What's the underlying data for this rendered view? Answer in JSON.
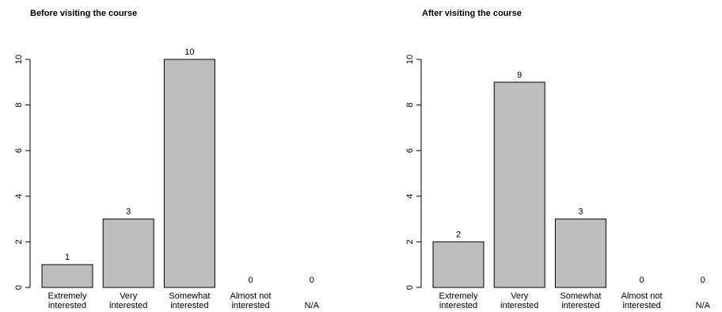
{
  "chart_data": [
    {
      "type": "bar",
      "title": "Before visiting the course",
      "categories": [
        [
          "Extremely",
          "interested"
        ],
        [
          "Very",
          "interested"
        ],
        [
          "Somewhat",
          "interested"
        ],
        [
          "Almost not",
          "interested"
        ],
        [
          "N/A"
        ]
      ],
      "values": [
        1,
        3,
        10,
        0,
        0
      ],
      "ylim": [
        0,
        10
      ],
      "yticks": [
        0,
        2,
        4,
        6,
        8,
        10
      ],
      "bar_color": "#bebebe",
      "data_labels": true,
      "grid": false
    },
    {
      "type": "bar",
      "title": "After visiting the course",
      "categories": [
        [
          "Extremely",
          "interested"
        ],
        [
          "Very",
          "interested"
        ],
        [
          "Somewhat",
          "interested"
        ],
        [
          "Almost not",
          "interested"
        ],
        [
          "N/A"
        ]
      ],
      "values": [
        2,
        9,
        3,
        0,
        0
      ],
      "ylim": [
        0,
        10
      ],
      "yticks": [
        0,
        2,
        4,
        6,
        8,
        10
      ],
      "bar_color": "#bebebe",
      "data_labels": true,
      "grid": false
    }
  ]
}
